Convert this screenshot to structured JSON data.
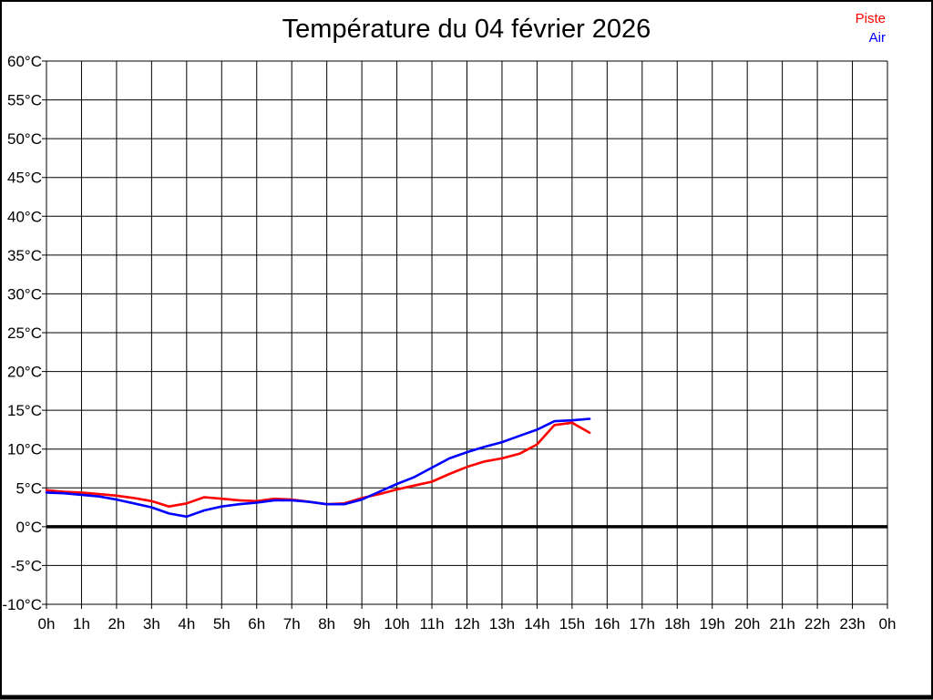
{
  "chart_data": {
    "type": "line",
    "title": "Température du 04 février 2026",
    "xlabel": "",
    "ylabel": "",
    "xlim": [
      0,
      24
    ],
    "ylim": [
      -10,
      60
    ],
    "y_step": 5,
    "grid": true,
    "zero_line": true,
    "legend_position": "top-right",
    "background_color": "#ffffff",
    "grid_color": "#000000",
    "x_tick_labels": [
      "0h",
      "1h",
      "2h",
      "3h",
      "4h",
      "5h",
      "6h",
      "7h",
      "8h",
      "9h",
      "10h",
      "11h",
      "12h",
      "13h",
      "14h",
      "15h",
      "16h",
      "17h",
      "18h",
      "19h",
      "20h",
      "21h",
      "22h",
      "23h",
      "0h"
    ],
    "y_tick_labels": [
      "60°C",
      "55°C",
      "50°C",
      "45°C",
      "40°C",
      "35°C",
      "30°C",
      "25°C",
      "20°C",
      "15°C",
      "10°C",
      "5°C",
      "0°C",
      "-5°C",
      "-10°C"
    ],
    "series": [
      {
        "name": "Piste",
        "color": "#ff0000",
        "x": [
          0,
          0.5,
          1,
          1.5,
          2,
          2.5,
          3,
          3.5,
          4,
          4.5,
          5,
          5.5,
          6,
          6.5,
          7,
          7.5,
          8,
          8.5,
          9,
          9.5,
          10,
          10.5,
          11,
          11.5,
          12,
          12.5,
          13,
          13.5,
          14,
          14.5,
          15,
          15.5
        ],
        "values": [
          4.7,
          4.5,
          4.4,
          4.2,
          4.0,
          3.7,
          3.3,
          2.6,
          3.0,
          3.8,
          3.6,
          3.4,
          3.3,
          3.6,
          3.5,
          3.2,
          2.9,
          3.0,
          3.7,
          4.2,
          4.8,
          5.3,
          5.8,
          6.8,
          7.7,
          8.4,
          8.8,
          9.4,
          10.6,
          13.1,
          13.4,
          12.1
        ]
      },
      {
        "name": "Air",
        "color": "#0000ff",
        "x": [
          0,
          0.5,
          1,
          1.5,
          2,
          2.5,
          3,
          3.5,
          4,
          4.5,
          5,
          5.5,
          6,
          6.5,
          7,
          7.5,
          8,
          8.5,
          9,
          9.5,
          10,
          10.5,
          11,
          11.5,
          12,
          12.5,
          13,
          13.5,
          14,
          14.5,
          15,
          15.5
        ],
        "values": [
          4.4,
          4.3,
          4.1,
          3.9,
          3.5,
          3.0,
          2.5,
          1.7,
          1.3,
          2.1,
          2.6,
          2.9,
          3.1,
          3.4,
          3.4,
          3.2,
          2.9,
          2.9,
          3.5,
          4.5,
          5.5,
          6.4,
          7.6,
          8.8,
          9.6,
          10.3,
          10.9,
          11.7,
          12.5,
          13.6,
          13.7,
          13.9
        ]
      }
    ]
  }
}
